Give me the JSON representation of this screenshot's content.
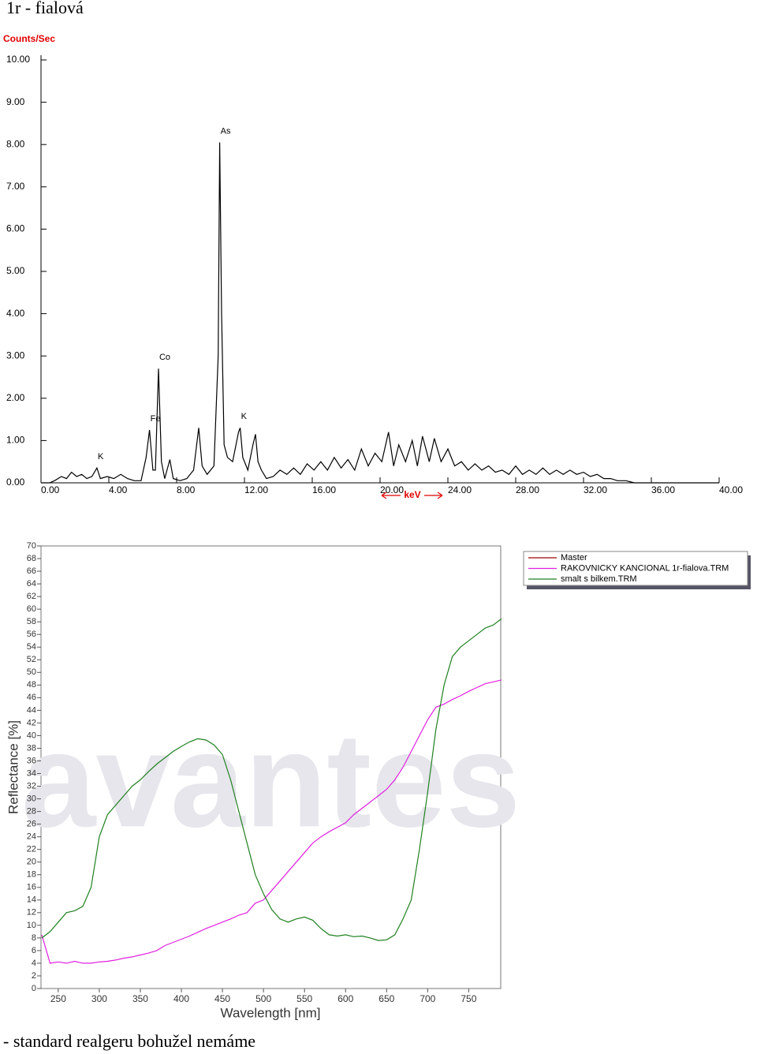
{
  "title": "1r - fialová",
  "chart_data": [
    {
      "type": "line",
      "ylabel": "Counts/Sec",
      "xlabel": "keV",
      "color": "#000000",
      "xlim": [
        0,
        40
      ],
      "ylim": [
        0,
        10
      ],
      "xticks": [
        {
          "value": 0,
          "label": "0.00"
        },
        {
          "value": 4,
          "label": "4.00"
        },
        {
          "value": 8,
          "label": "8.00"
        },
        {
          "value": 12,
          "label": "12.00"
        },
        {
          "value": 16,
          "label": "16.00"
        },
        {
          "value": 20,
          "label": "20.00"
        },
        {
          "value": 24,
          "label": "24.00"
        },
        {
          "value": 28,
          "label": "28.00"
        },
        {
          "value": 32,
          "label": "32.00"
        },
        {
          "value": 36,
          "label": "36.00"
        },
        {
          "value": 40,
          "label": "40.00"
        }
      ],
      "yticks": [
        {
          "value": 0,
          "label": "0.00"
        },
        {
          "value": 1,
          "label": "1.00"
        },
        {
          "value": 2,
          "label": "2.00"
        },
        {
          "value": 3,
          "label": "3.00"
        },
        {
          "value": 4,
          "label": "4.00"
        },
        {
          "value": 5,
          "label": "5.00"
        },
        {
          "value": 6,
          "label": "6.00"
        },
        {
          "value": 7,
          "label": "7.00"
        },
        {
          "value": 8,
          "label": "8.00"
        },
        {
          "value": 9,
          "label": "9.00"
        },
        {
          "value": 10,
          "label": "10.00"
        }
      ],
      "x": [
        0,
        0.5,
        0.8,
        1.2,
        1.5,
        1.8,
        2.1,
        2.4,
        2.7,
        3.0,
        3.3,
        3.5,
        3.9,
        4.3,
        4.7,
        5.1,
        5.5,
        5.9,
        6.2,
        6.4,
        6.6,
        6.75,
        6.93,
        7.1,
        7.3,
        7.6,
        7.8,
        8.2,
        8.6,
        9.0,
        9.3,
        9.5,
        9.8,
        10.2,
        10.45,
        10.54,
        10.65,
        10.8,
        11.0,
        11.3,
        11.5,
        11.65,
        11.75,
        11.9,
        12.2,
        12.5,
        12.65,
        12.8,
        13.0,
        13.3,
        13.7,
        14.1,
        14.5,
        14.9,
        15.3,
        15.7,
        16.1,
        16.5,
        16.9,
        17.3,
        17.7,
        18.1,
        18.5,
        18.9,
        19.3,
        19.7,
        20.1,
        20.5,
        20.8,
        21.1,
        21.5,
        21.9,
        22.2,
        22.5,
        22.9,
        23.2,
        23.6,
        24.0,
        24.4,
        24.8,
        25.2,
        25.6,
        26.0,
        26.4,
        26.8,
        27.2,
        27.6,
        28.0,
        28.4,
        28.8,
        29.2,
        29.6,
        30.0,
        30.4,
        30.8,
        31.2,
        31.6,
        32.0,
        32.4,
        32.8,
        33.2,
        33.6,
        34.0,
        34.5,
        35.0,
        36.0,
        37.0,
        38.0,
        39.0,
        40.0
      ],
      "values": [
        0,
        0,
        0.05,
        0.15,
        0.1,
        0.25,
        0.15,
        0.2,
        0.1,
        0.15,
        0.35,
        0.1,
        0.15,
        0.1,
        0.2,
        0.1,
        0.05,
        0.05,
        0.6,
        1.25,
        0.3,
        0.3,
        2.7,
        0.5,
        0.1,
        0.55,
        0.1,
        0.05,
        0.1,
        0.3,
        1.3,
        0.4,
        0.2,
        0.4,
        3.0,
        8.05,
        4.0,
        0.9,
        0.6,
        0.5,
        0.9,
        1.2,
        1.3,
        0.6,
        0.3,
        0.9,
        1.15,
        0.5,
        0.3,
        0.1,
        0.15,
        0.3,
        0.2,
        0.35,
        0.2,
        0.45,
        0.3,
        0.5,
        0.3,
        0.6,
        0.35,
        0.55,
        0.3,
        0.8,
        0.4,
        0.7,
        0.5,
        1.2,
        0.4,
        0.9,
        0.5,
        1.0,
        0.4,
        1.1,
        0.5,
        1.05,
        0.5,
        0.8,
        0.4,
        0.5,
        0.3,
        0.45,
        0.3,
        0.4,
        0.25,
        0.3,
        0.2,
        0.4,
        0.2,
        0.3,
        0.2,
        0.35,
        0.2,
        0.3,
        0.2,
        0.3,
        0.2,
        0.25,
        0.15,
        0.2,
        0.1,
        0.1,
        0.05,
        0.05,
        0,
        0,
        0,
        0,
        0,
        0
      ],
      "annotations": [
        {
          "text": "K",
          "x": 3.3,
          "y": 0.35
        },
        {
          "text": "Fe",
          "x": 6.4,
          "y": 1.25
        },
        {
          "text": "Co",
          "x": 6.93,
          "y": 2.7
        },
        {
          "text": "As",
          "x": 10.54,
          "y": 8.05
        },
        {
          "text": "K",
          "x": 11.75,
          "y": 1.3
        }
      ]
    },
    {
      "type": "line",
      "ylabel": "Reflectance [%]",
      "xlabel": "Wavelength [nm]",
      "watermark": "avantes",
      "legend": "right",
      "xlim": [
        229,
        789
      ],
      "ylim": [
        0,
        70
      ],
      "xticks": [
        250,
        300,
        350,
        400,
        450,
        500,
        550,
        600,
        650,
        700,
        750
      ],
      "yticks": [
        0,
        2,
        4,
        6,
        8,
        10,
        12,
        14,
        16,
        18,
        20,
        22,
        24,
        26,
        28,
        30,
        32,
        34,
        36,
        38,
        40,
        42,
        44,
        46,
        48,
        50,
        52,
        54,
        56,
        58,
        60,
        62,
        64,
        66,
        68,
        70
      ],
      "x": [
        230,
        240,
        250,
        260,
        270,
        280,
        290,
        300,
        310,
        320,
        330,
        340,
        350,
        360,
        370,
        380,
        390,
        400,
        410,
        420,
        430,
        440,
        450,
        460,
        470,
        480,
        490,
        500,
        510,
        520,
        530,
        540,
        550,
        560,
        570,
        580,
        590,
        600,
        610,
        620,
        630,
        640,
        650,
        660,
        670,
        680,
        690,
        700,
        710,
        720,
        730,
        740,
        750,
        760,
        770,
        780,
        790
      ],
      "series": [
        {
          "name": "Master",
          "color": "#a00000",
          "values": [
            null,
            null,
            null,
            null,
            null,
            null,
            null,
            null,
            null,
            null,
            null,
            null,
            null,
            null,
            null,
            null,
            null,
            null,
            null,
            null,
            null,
            null,
            null,
            null,
            null,
            null,
            null,
            null,
            null,
            null,
            null,
            null,
            null,
            null,
            null,
            null,
            null,
            null,
            null,
            null,
            null,
            null,
            null,
            null,
            null,
            null,
            null,
            null,
            null,
            null,
            null,
            null,
            null,
            null,
            null,
            null,
            null
          ]
        },
        {
          "name": "RAKOVNICKY KANCIONAL 1r-fialova.TRM",
          "color": "#e020e0",
          "values": [
            8.5,
            4,
            4.2,
            4,
            4.3,
            4,
            4,
            4.2,
            4.3,
            4.5,
            4.8,
            5,
            5.3,
            5.6,
            6,
            6.8,
            7.3,
            7.8,
            8.3,
            8.9,
            9.5,
            10,
            10.5,
            11,
            11.6,
            12,
            13.5,
            14,
            15.5,
            17,
            18.5,
            20,
            21.5,
            23,
            24,
            24.8,
            25.5,
            26.2,
            27.5,
            28.5,
            29.5,
            30.5,
            31.5,
            33,
            35,
            37.5,
            40,
            42.5,
            44.5,
            45,
            45.7,
            46.3,
            47,
            47.6,
            48.2,
            48.5,
            48.8
          ]
        },
        {
          "name": "smalt s bilkem.TRM",
          "color": "#208020",
          "values": [
            8,
            9,
            10.5,
            12,
            12.3,
            13,
            16,
            24,
            27.5,
            29,
            30.5,
            32,
            33,
            34.3,
            35.5,
            36.5,
            37.5,
            38.3,
            39,
            39.5,
            39.3,
            38.5,
            37,
            33,
            28,
            23,
            18,
            15,
            12.5,
            11,
            10.5,
            11,
            11.3,
            10.8,
            9.5,
            8.5,
            8.3,
            8.5,
            8.2,
            8.3,
            8,
            7.6,
            7.7,
            8.5,
            11,
            14,
            22,
            31,
            41,
            48,
            52.5,
            54,
            55,
            56,
            57,
            57.5,
            58.5
          ]
        }
      ]
    }
  ],
  "note": "- standard realgeru bohužel nemáme"
}
